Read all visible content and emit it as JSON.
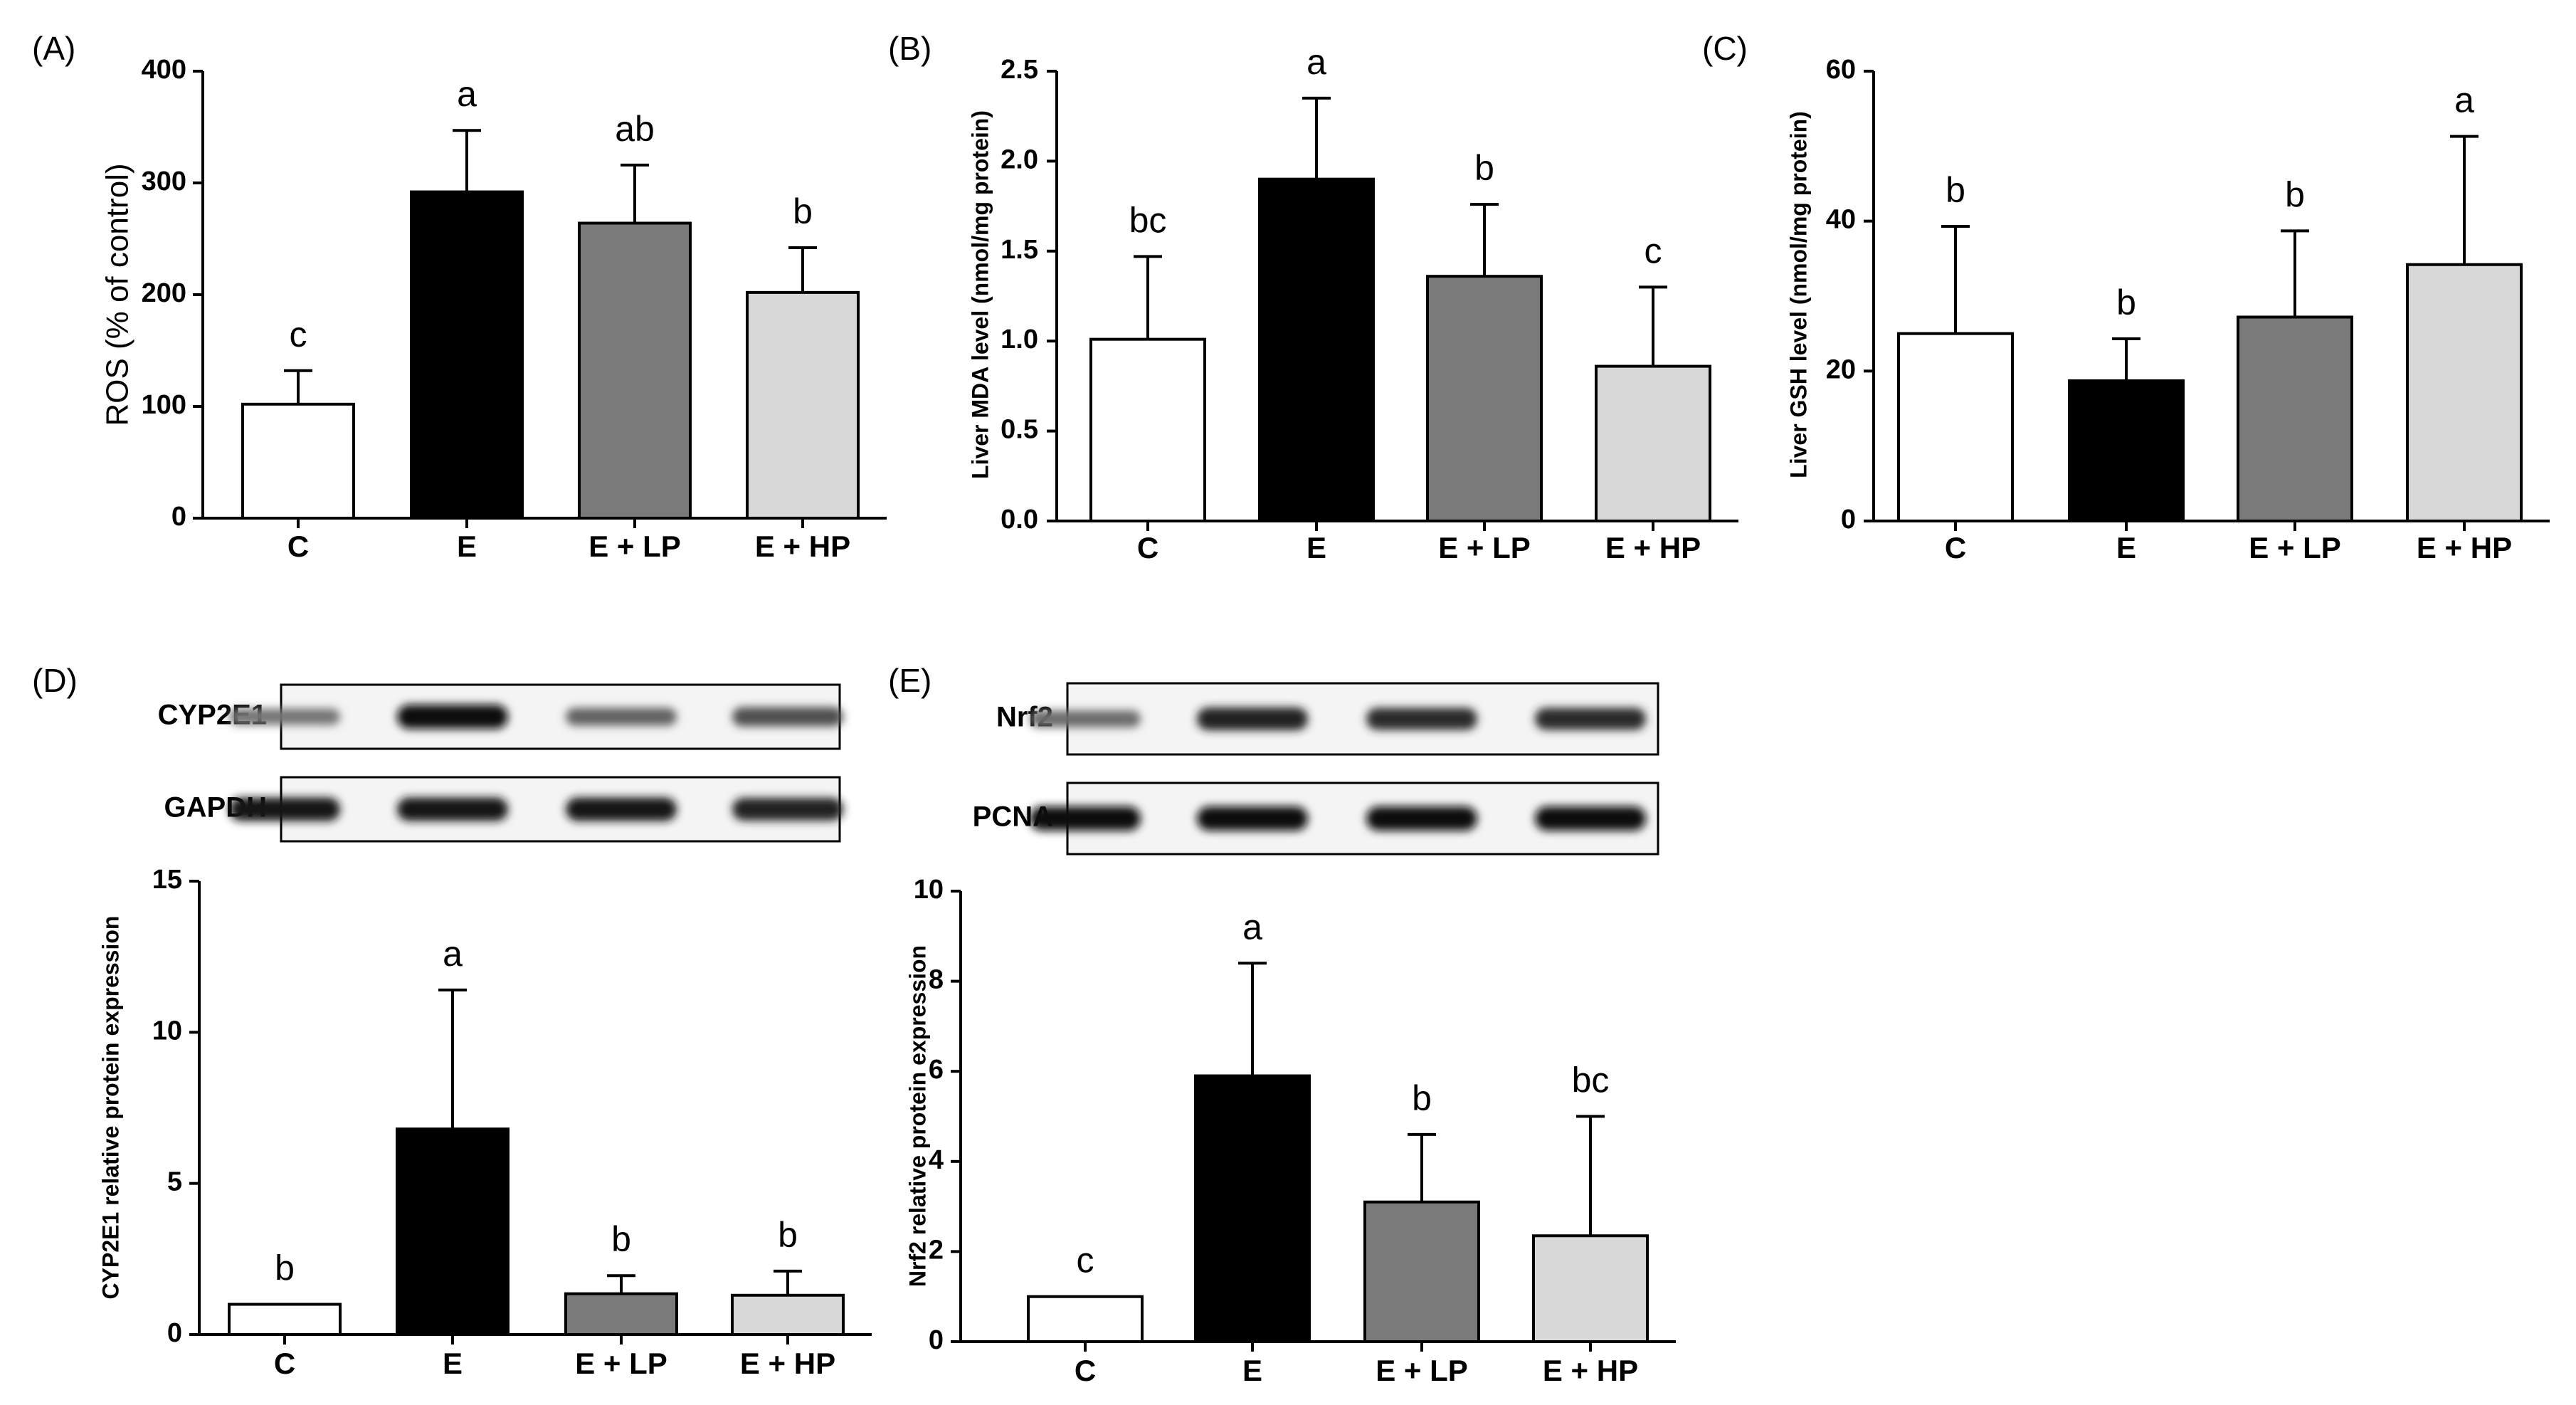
{
  "chart_data": [
    {
      "id": "A",
      "panel_label": "(A)",
      "type": "bar",
      "categories": [
        "C",
        "E",
        "E + LP",
        "E + HP"
      ],
      "values": [
        102,
        292,
        264,
        202
      ],
      "errors": [
        30,
        55,
        52,
        40
      ],
      "significance": [
        "c",
        "a",
        "ab",
        "b"
      ],
      "ylabel": "ROS (% of control)",
      "ylim": [
        0,
        400
      ],
      "yticks": [
        "0",
        "100",
        "200",
        "300",
        "400"
      ],
      "fills": [
        "#ffffff",
        "#000000",
        "#7a7a7a",
        "#d8d8d8"
      ]
    },
    {
      "id": "B",
      "panel_label": "(B)",
      "type": "bar",
      "categories": [
        "C",
        "E",
        "E + LP",
        "E + HP"
      ],
      "values": [
        1.01,
        1.9,
        1.36,
        0.86
      ],
      "errors": [
        0.46,
        0.45,
        0.4,
        0.44
      ],
      "significance": [
        "bc",
        "a",
        "b",
        "c"
      ],
      "ylabel": "Liver MDA level (nmol/mg protein)",
      "ylim": [
        0,
        2.5
      ],
      "yticks": [
        "0.0",
        "0.5",
        "1.0",
        "1.5",
        "2.0",
        "2.5"
      ],
      "fills": [
        "#ffffff",
        "#000000",
        "#7a7a7a",
        "#d8d8d8"
      ]
    },
    {
      "id": "C",
      "panel_label": "(C)",
      "type": "bar",
      "categories": [
        "C",
        "E",
        "E + LP",
        "E + HP"
      ],
      "values": [
        25,
        18.7,
        27.2,
        34.2
      ],
      "errors": [
        14.3,
        5.6,
        11.5,
        17.1
      ],
      "significance": [
        "b",
        "b",
        "b",
        "a"
      ],
      "ylabel": "Liver GSH level (nmol/mg protein)",
      "ylim": [
        0,
        60
      ],
      "yticks": [
        "0",
        "20",
        "40",
        "60"
      ],
      "fills": [
        "#ffffff",
        "#000000",
        "#7a7a7a",
        "#d8d8d8"
      ]
    },
    {
      "id": "D",
      "panel_label": "(D)",
      "type": "bar",
      "categories": [
        "C",
        "E",
        "E + LP",
        "E + HP"
      ],
      "values": [
        1.0,
        6.8,
        1.35,
        1.3
      ],
      "errors": [
        0,
        4.6,
        0.6,
        0.8
      ],
      "significance": [
        "b",
        "a",
        "b",
        "b"
      ],
      "ylabel": "CYP2E1 relative protein expression",
      "ylim": [
        0,
        15
      ],
      "yticks": [
        "0",
        "5",
        "10",
        "15"
      ],
      "fills": [
        "#ffffff",
        "#000000",
        "#7a7a7a",
        "#d8d8d8"
      ],
      "blots": [
        {
          "label": "CYP2E1",
          "intensities": [
            0.45,
            1.0,
            0.55,
            0.65
          ]
        },
        {
          "label": "GAPDH",
          "intensities": [
            0.95,
            0.95,
            0.95,
            0.9
          ]
        }
      ]
    },
    {
      "id": "E",
      "panel_label": "(E)",
      "type": "bar",
      "categories": [
        "C",
        "E",
        "E + LP",
        "E + HP"
      ],
      "values": [
        1.0,
        5.9,
        3.1,
        2.35
      ],
      "errors": [
        0,
        2.5,
        1.5,
        2.65
      ],
      "significance": [
        "c",
        "a",
        "b",
        "bc"
      ],
      "ylabel": "Nrf2 relative protein expression",
      "ylim": [
        0,
        10
      ],
      "yticks": [
        "0",
        "2",
        "4",
        "6",
        "8",
        "10"
      ],
      "fills": [
        "#ffffff",
        "#000000",
        "#7a7a7a",
        "#d8d8d8"
      ],
      "blots": [
        {
          "label": "Nrf2",
          "intensities": [
            0.5,
            0.9,
            0.85,
            0.85
          ]
        },
        {
          "label": "PCNA",
          "intensities": [
            1.0,
            1.0,
            1.0,
            1.0
          ]
        }
      ]
    }
  ]
}
